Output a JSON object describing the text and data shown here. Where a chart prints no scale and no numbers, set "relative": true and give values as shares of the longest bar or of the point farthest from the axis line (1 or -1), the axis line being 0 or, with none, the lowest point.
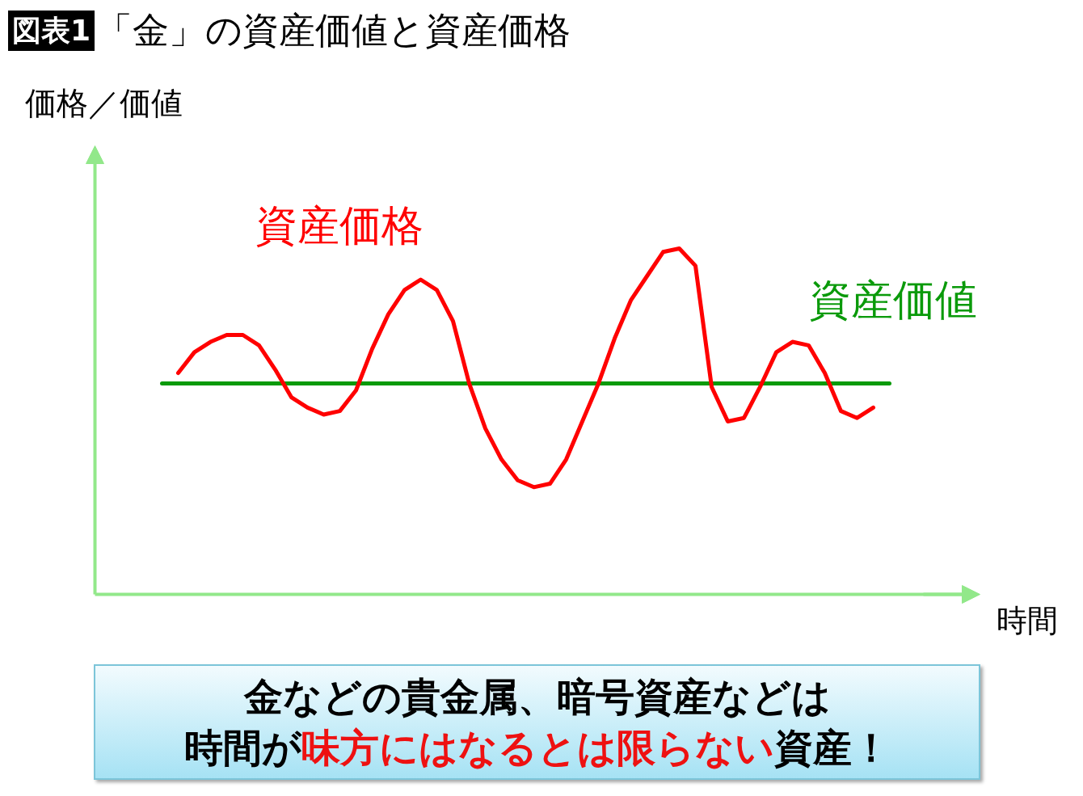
{
  "chart_data": {
    "type": "line",
    "title": "「金」の資産価値と資産価格",
    "xlabel": "時間",
    "ylabel": "価格／価値",
    "relative": true,
    "categories": [
      null,
      null,
      null,
      null,
      null,
      null,
      null,
      null,
      null,
      null,
      null,
      null,
      null,
      null,
      null,
      null,
      null,
      null,
      null,
      null,
      null,
      null,
      null,
      null,
      null,
      null,
      null,
      null,
      null,
      null,
      null,
      null,
      null,
      null,
      null,
      null,
      null,
      null,
      null,
      null,
      null,
      null,
      null,
      null,
      null,
      null
    ],
    "series": [
      {
        "name": "資産価値",
        "color": "#0a9a0a",
        "values": [
          0.61,
          0.61,
          0.61,
          0.61,
          0.61,
          0.61,
          0.61,
          0.61,
          0.61,
          0.61,
          0.61,
          0.61,
          0.61,
          0.61,
          0.61,
          0.61,
          0.61,
          0.61,
          0.61,
          0.61,
          0.61,
          0.61,
          0.61,
          0.61,
          0.61,
          0.61,
          0.61,
          0.61,
          0.61,
          0.61,
          0.61,
          0.61,
          0.61,
          0.61,
          0.61,
          0.61,
          0.61,
          0.61,
          0.61,
          0.61,
          0.61,
          0.61,
          0.61,
          0.61,
          0.61,
          0.61
        ]
      },
      {
        "name": "資産価格",
        "color": "#ff0000",
        "values": [
          null,
          0.64,
          0.7,
          0.73,
          0.75,
          0.75,
          0.72,
          0.65,
          0.57,
          0.54,
          0.52,
          0.53,
          0.59,
          0.71,
          0.81,
          0.88,
          0.91,
          0.88,
          0.79,
          0.61,
          0.48,
          0.39,
          0.33,
          0.31,
          0.32,
          0.39,
          0.5,
          0.61,
          0.74,
          0.85,
          0.92,
          0.99,
          1.0,
          0.95,
          0.6,
          0.5,
          0.51,
          0.6,
          0.7,
          0.73,
          0.72,
          0.64,
          0.53,
          0.51,
          0.54,
          null
        ]
      }
    ],
    "annotations": [
      "図表1",
      "金などの貴金属、暗号資産などは",
      "時間が",
      "味方にはなるとは限らない",
      "資産！"
    ]
  }
}
